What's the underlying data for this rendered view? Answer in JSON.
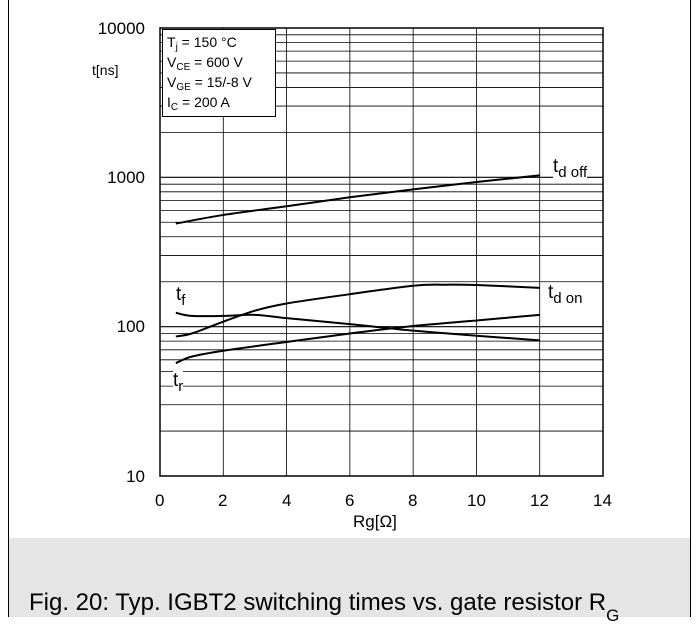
{
  "chart_data": {
    "type": "line",
    "title": "",
    "xlabel": "Rg[Ω]",
    "ylabel": "t[ns]",
    "xlim": [
      0,
      14
    ],
    "ylim": [
      10,
      10000
    ],
    "yscale": "log",
    "grid": true,
    "x_ticks": [
      "0",
      "2",
      "4",
      "6",
      "8",
      "10",
      "12",
      "14"
    ],
    "y_ticks": [
      "10",
      "100",
      "1000",
      "10000"
    ],
    "conditions": {
      "tj": {
        "main": "T",
        "sub": "j",
        "rest": " = 150 °C"
      },
      "vce": {
        "main": "V",
        "sub": "CE",
        "rest": " = 600 V"
      },
      "vge": {
        "main": "V",
        "sub": "GE",
        "rest": " = 15/-8 V"
      },
      "ic": {
        "main": "I",
        "sub": "C",
        "rest": " = 200 A"
      }
    },
    "series": [
      {
        "key": "tdoff",
        "label_main": "t",
        "label_sub": "d off",
        "x": [
          0.5,
          2,
          4,
          6,
          8,
          10,
          12
        ],
        "y": [
          490,
          560,
          640,
          735,
          830,
          930,
          1030
        ]
      },
      {
        "key": "tdon",
        "label_main": "t",
        "label_sub": "d on",
        "x": [
          0.5,
          1,
          2,
          3,
          4,
          6,
          8,
          9,
          10,
          12
        ],
        "y": [
          86,
          90,
          108,
          128,
          143,
          165,
          188,
          191,
          190,
          182
        ]
      },
      {
        "key": "tf",
        "label_main": "t",
        "label_sub": "f",
        "x": [
          0.5,
          1,
          2,
          3,
          4,
          6,
          8,
          10,
          12
        ],
        "y": [
          124,
          118,
          118,
          120,
          114,
          104,
          94,
          87,
          81
        ]
      },
      {
        "key": "tr",
        "label_main": "t",
        "label_sub": "r",
        "x": [
          0.5,
          1,
          2,
          4,
          6,
          8,
          10,
          12
        ],
        "y": [
          57,
          63,
          69,
          79,
          90,
          101,
          110,
          120
        ]
      }
    ]
  },
  "caption": {
    "text": "Fig. 20: Typ. IGBT2 switching times vs. gate resistor R",
    "sub": "G"
  },
  "colors": {
    "line": "#000000",
    "caption_bg": "#e5e5e5",
    "background": "#ffffff"
  }
}
